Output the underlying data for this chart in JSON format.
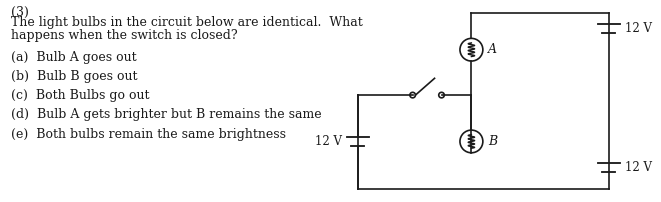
{
  "background_color": "#ffffff",
  "text_color": "#1a1a1a",
  "question_number": "(3)",
  "question_text_line1": "The light bulbs in the circuit below are identical.  What",
  "question_text_line2": "happens when the switch is closed?",
  "options": [
    "(a)  Bulb A goes out",
    "(b)  Bulb B goes out",
    "(c)  Both Bulbs go out",
    "(d)  Bulb A gets brighter but B remains the same",
    "(e)  Both bulbs remain the same brightness"
  ],
  "font_size": 9.0,
  "line_color": "#1a1a1a",
  "line_width": 1.2
}
